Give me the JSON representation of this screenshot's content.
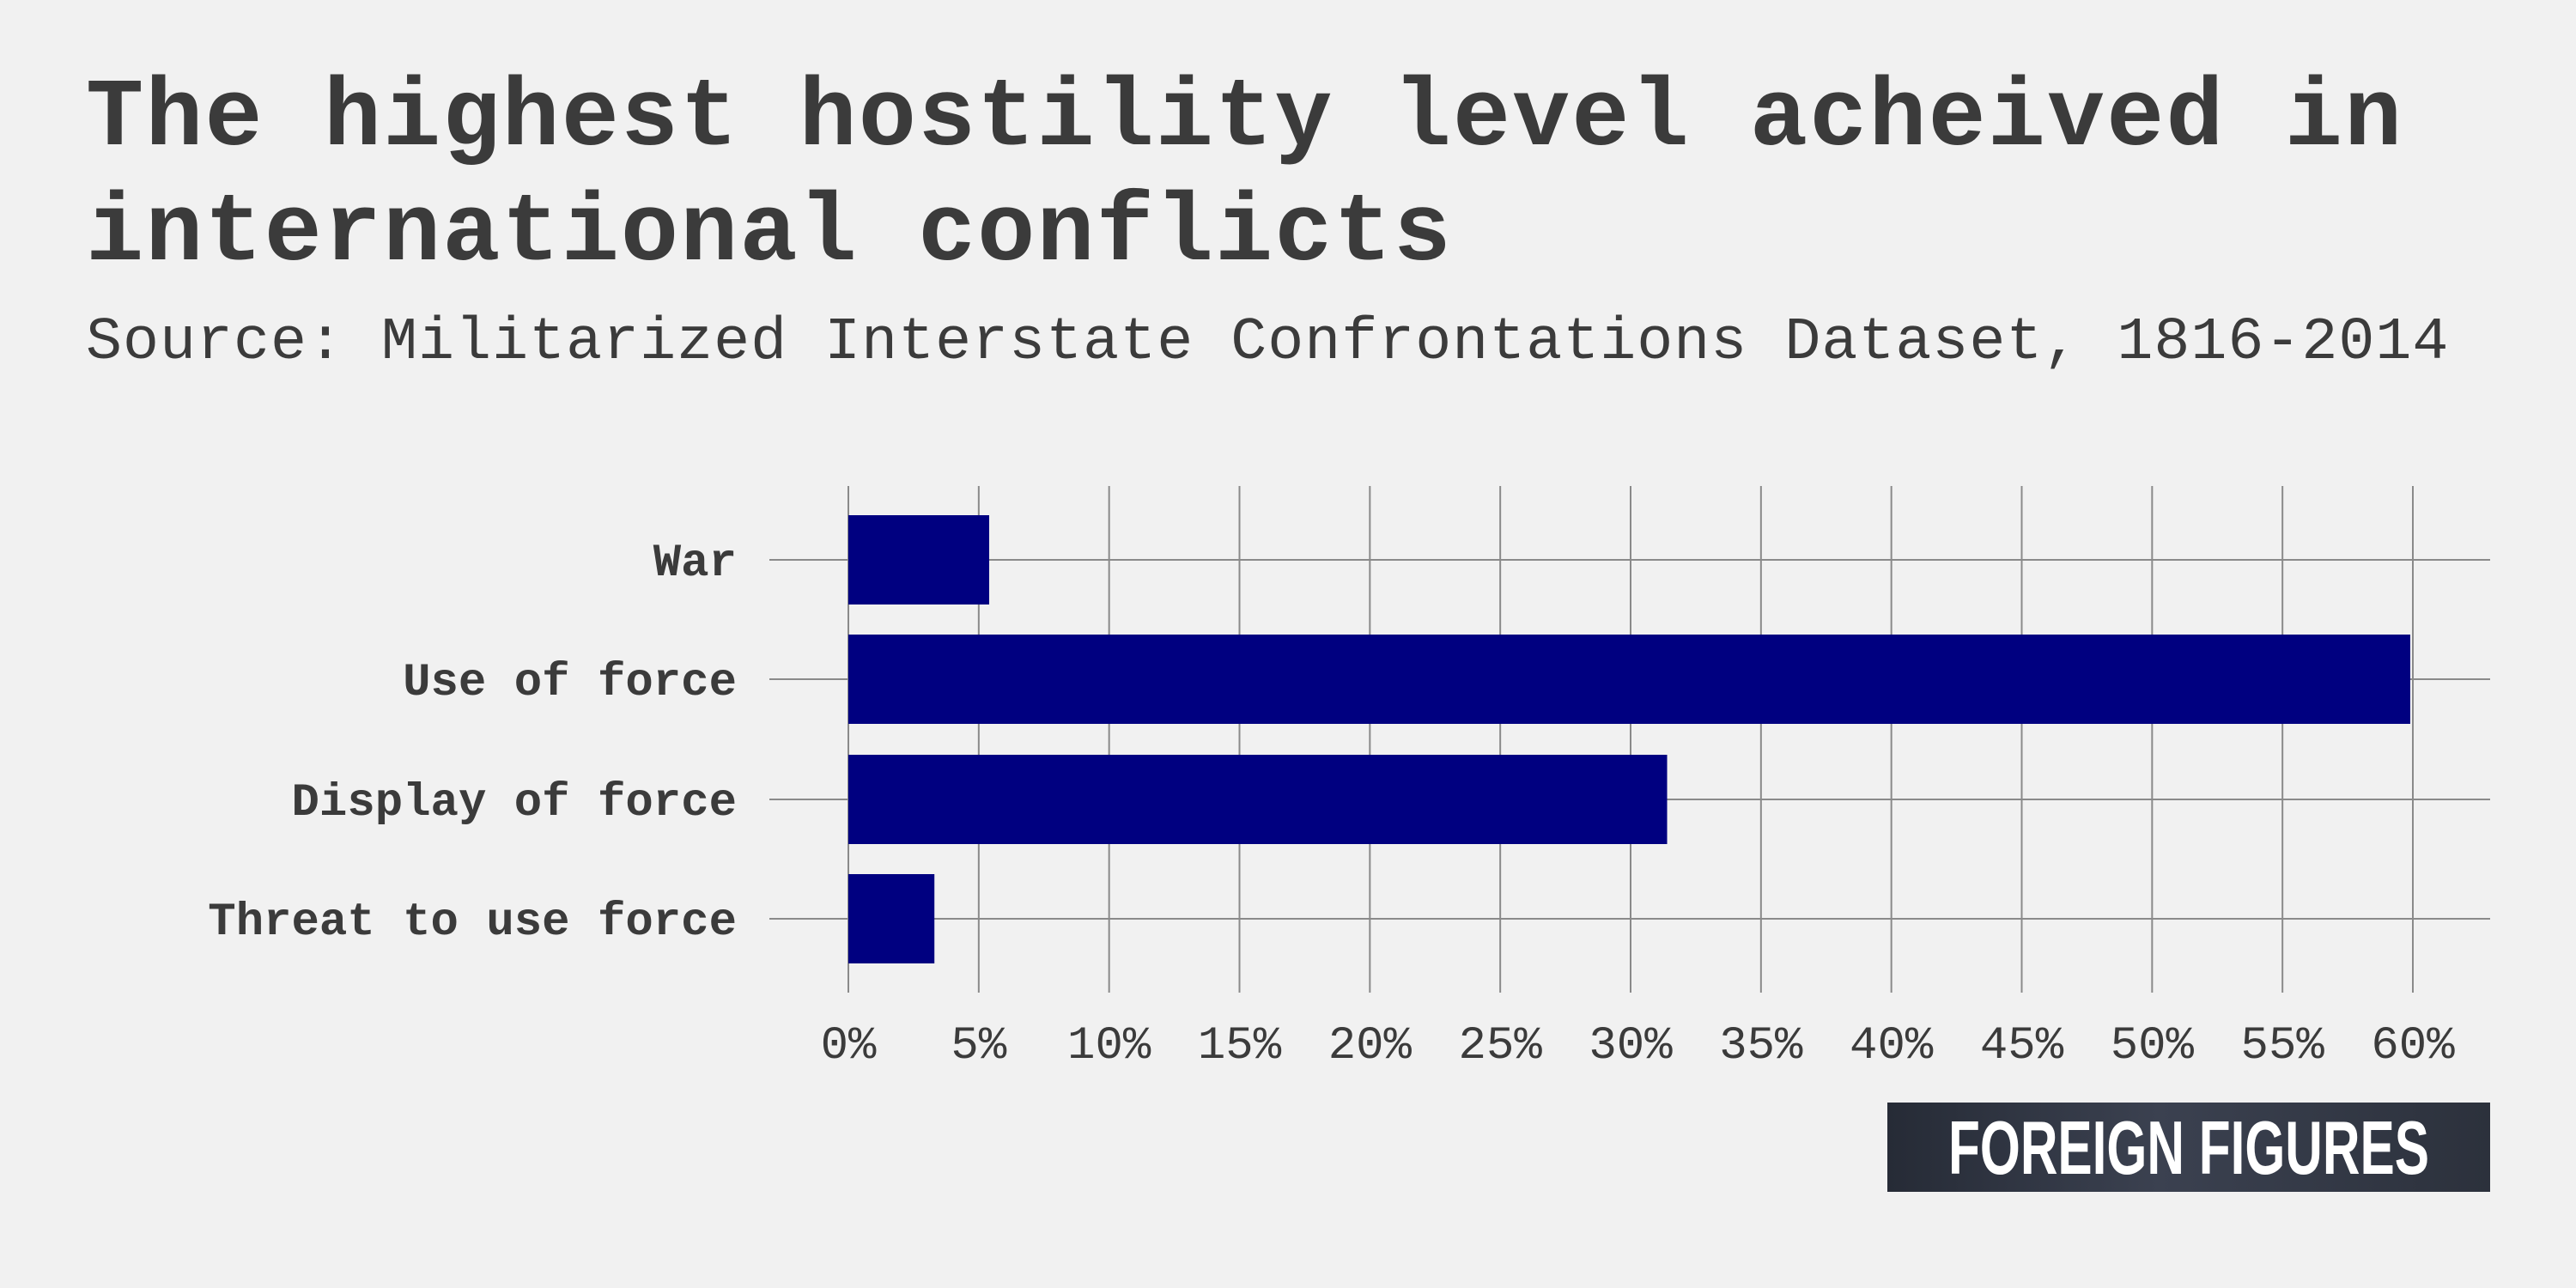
{
  "header": {
    "title": "The highest hostility level acheived in international conflicts",
    "subtitle": "Source: Militarized Interstate Confrontations Dataset, 1816-2014"
  },
  "logo": {
    "text": "FOREIGN FIGURES"
  },
  "colors": {
    "bar": "#000080",
    "grid": "#8a8a8a",
    "text": "#3b3b3b",
    "background": "#f1f1f1"
  },
  "chart_data": {
    "type": "bar",
    "orientation": "horizontal",
    "categories": [
      "War",
      "Use of force",
      "Display of force",
      "Threat to use force"
    ],
    "values": [
      5.4,
      59.9,
      31.4,
      3.3
    ],
    "xlim": [
      0,
      60
    ],
    "xticks": [
      0,
      5,
      10,
      15,
      20,
      25,
      30,
      35,
      40,
      45,
      50,
      55,
      60
    ],
    "tick_suffix": "%",
    "grid": true,
    "legend": "none"
  }
}
